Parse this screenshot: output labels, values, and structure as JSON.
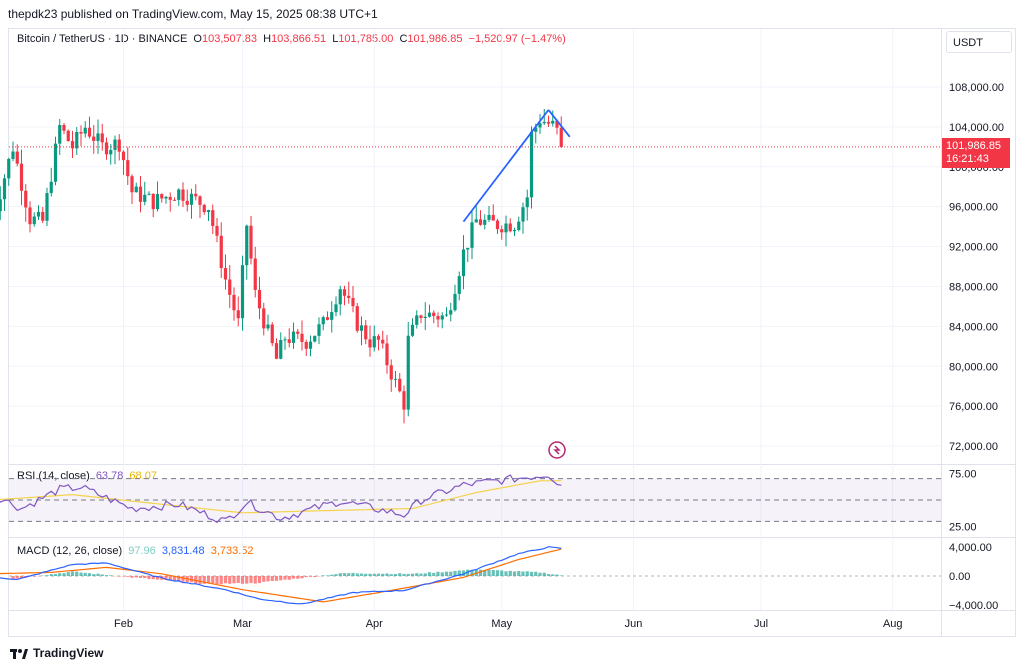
{
  "publisher": "thepdk23 published on TradingView.com, May 15, 2025 08:38 UTC+1",
  "symbol_line": {
    "title": "Bitcoin / TetherUS · 1D · BINANCE",
    "o_label": "O",
    "o_value": "103,507.83",
    "h_label": "H",
    "h_value": "103,866.51",
    "l_label": "L",
    "l_value": "101,785.00",
    "c_label": "C",
    "c_value": "101,986.85",
    "change": "−1,520.97 (−1.47%)"
  },
  "currency": "USDT",
  "last_price": {
    "value": "101,986.85",
    "countdown": "16:21:43",
    "color": "#f23645"
  },
  "rsi_legend": {
    "title": "RSI (14, close)",
    "rsi": "63.78",
    "ma": "68.07"
  },
  "macd_legend": {
    "title": "MACD (12, 26, close)",
    "hist": "97.96",
    "macd": "3,831.48",
    "signal": "3,733.52"
  },
  "footer": {
    "brand": "TradingView"
  },
  "colors": {
    "up": "#089981",
    "down": "#f23645",
    "rsi": "#7e57c2",
    "rsi_ma": "#f5d24b",
    "macd": "#2962ff",
    "signal": "#ff6d00",
    "trendline": "#2962ff"
  },
  "chart_data": [
    {
      "type": "candlestick",
      "title": "Bitcoin / TetherUS · 1D · BINANCE",
      "x_ticks": [
        "Feb",
        "Mar",
        "Apr",
        "May",
        "Jun",
        "Jul",
        "Aug"
      ],
      "y_ticks": [
        "108,000.00",
        "104,000.00",
        "100,000.00",
        "96,000.00",
        "92,000.00",
        "88,000.00",
        "84,000.00",
        "80,000.00",
        "76,000.00",
        "72,000.00"
      ],
      "ylim": [
        70000,
        110000
      ],
      "close_path": [
        [
          "2025-01-01",
          94500
        ],
        [
          "2025-01-06",
          102000
        ],
        [
          "2025-01-10",
          94800
        ],
        [
          "2025-01-13",
          94500
        ],
        [
          "2025-01-17",
          104000
        ],
        [
          "2025-01-20",
          102000
        ],
        [
          "2025-01-23",
          104000
        ],
        [
          "2025-01-27",
          102000
        ],
        [
          "2025-01-31",
          102400
        ],
        [
          "2025-02-03",
          97500
        ],
        [
          "2025-02-08",
          96500
        ],
        [
          "2025-02-14",
          97500
        ],
        [
          "2025-02-21",
          96000
        ],
        [
          "2025-02-25",
          88700
        ],
        [
          "2025-02-28",
          84300
        ],
        [
          "2025-03-02",
          94200
        ],
        [
          "2025-03-04",
          87200
        ],
        [
          "2025-03-09",
          80700
        ],
        [
          "2025-03-11",
          82900
        ],
        [
          "2025-03-16",
          82500
        ],
        [
          "2025-03-20",
          84200
        ],
        [
          "2025-03-24",
          88000
        ],
        [
          "2025-03-28",
          84300
        ],
        [
          "2025-03-31",
          82500
        ],
        [
          "2025-04-02",
          82500
        ],
        [
          "2025-04-06",
          78300
        ],
        [
          "2025-04-08",
          76300
        ],
        [
          "2025-04-09",
          82600
        ],
        [
          "2025-04-12",
          85300
        ],
        [
          "2025-04-18",
          84900
        ],
        [
          "2025-04-22",
          91400
        ],
        [
          "2025-04-25",
          94600
        ],
        [
          "2025-04-30",
          94200
        ],
        [
          "2025-05-04",
          94300
        ],
        [
          "2025-05-07",
          97000
        ],
        [
          "2025-05-08",
          103200
        ],
        [
          "2025-05-10",
          104800
        ],
        [
          "2025-05-13",
          104100
        ],
        [
          "2025-05-14",
          103500
        ],
        [
          "2025-05-15",
          101986.85
        ]
      ],
      "last_close": 101986.85,
      "trendlines": [
        {
          "from": [
            "2025-04-22",
            94500
          ],
          "to": [
            "2025-05-12",
            105700
          ]
        },
        {
          "from": [
            "2025-05-12",
            105700
          ],
          "to": [
            "2025-05-17",
            103000
          ]
        }
      ]
    },
    {
      "type": "line",
      "title": "RSI (14, close)",
      "y_ticks": [
        "75.00",
        "25.00"
      ],
      "ylim": [
        20,
        80
      ],
      "levels": [
        70,
        50,
        30
      ],
      "series": [
        {
          "name": "RSI",
          "points": [
            [
              "2025-01-01",
              56
            ],
            [
              "2025-01-08",
              42
            ],
            [
              "2025-01-17",
              60
            ],
            [
              "2025-01-22",
              62
            ],
            [
              "2025-02-03",
              42
            ],
            [
              "2025-02-14",
              46
            ],
            [
              "2025-02-25",
              30
            ],
            [
              "2025-03-02",
              48
            ],
            [
              "2025-03-10",
              33
            ],
            [
              "2025-03-24",
              49
            ],
            [
              "2025-04-08",
              36
            ],
            [
              "2025-04-12",
              50
            ],
            [
              "2025-04-22",
              64
            ],
            [
              "2025-05-08",
              72
            ],
            [
              "2025-05-12",
              74
            ],
            [
              "2025-05-15",
              63.78
            ]
          ]
        },
        {
          "name": "MA",
          "points": [
            [
              "2025-01-01",
              50
            ],
            [
              "2025-01-20",
              55
            ],
            [
              "2025-02-10",
              46
            ],
            [
              "2025-03-01",
              38
            ],
            [
              "2025-03-20",
              40
            ],
            [
              "2025-04-10",
              42
            ],
            [
              "2025-04-25",
              57
            ],
            [
              "2025-05-10",
              68
            ],
            [
              "2025-05-15",
              68.07
            ]
          ]
        }
      ]
    },
    {
      "type": "line",
      "title": "MACD (12, 26, close)",
      "y_ticks": [
        "4,000.00",
        "0.00",
        "−4,000.00"
      ],
      "ylim": [
        -5000,
        5000
      ],
      "series": [
        {
          "name": "MACD",
          "points": [
            [
              "2025-01-01",
              -100
            ],
            [
              "2025-01-07",
              -500
            ],
            [
              "2025-01-20",
              1600
            ],
            [
              "2025-01-28",
              1800
            ],
            [
              "2025-02-10",
              -300
            ],
            [
              "2025-02-25",
              -1900
            ],
            [
              "2025-03-05",
              -3200
            ],
            [
              "2025-03-15",
              -3900
            ],
            [
              "2025-03-27",
              -2300
            ],
            [
              "2025-04-08",
              -2000
            ],
            [
              "2025-04-22",
              300
            ],
            [
              "2025-05-05",
              3100
            ],
            [
              "2025-05-12",
              4000
            ],
            [
              "2025-05-15",
              3831.48
            ]
          ]
        },
        {
          "name": "Signal",
          "points": [
            [
              "2025-01-01",
              300
            ],
            [
              "2025-01-15",
              500
            ],
            [
              "2025-01-28",
              1200
            ],
            [
              "2025-02-10",
              300
            ],
            [
              "2025-03-01",
              -1900
            ],
            [
              "2025-03-20",
              -3600
            ],
            [
              "2025-04-05",
              -2000
            ],
            [
              "2025-04-22",
              -200
            ],
            [
              "2025-05-05",
              2300
            ],
            [
              "2025-05-15",
              3733.52
            ]
          ]
        },
        {
          "name": "Histogram",
          "points": [
            [
              "2025-01-06",
              -400
            ],
            [
              "2025-01-20",
              600
            ],
            [
              "2025-02-05",
              -300
            ],
            [
              "2025-02-20",
              -1100
            ],
            [
              "2025-03-04",
              -1000
            ],
            [
              "2025-03-25",
              400
            ],
            [
              "2025-04-10",
              300
            ],
            [
              "2025-04-25",
              900
            ],
            [
              "2025-05-10",
              500
            ],
            [
              "2025-05-15",
              97.96
            ]
          ]
        }
      ]
    }
  ]
}
